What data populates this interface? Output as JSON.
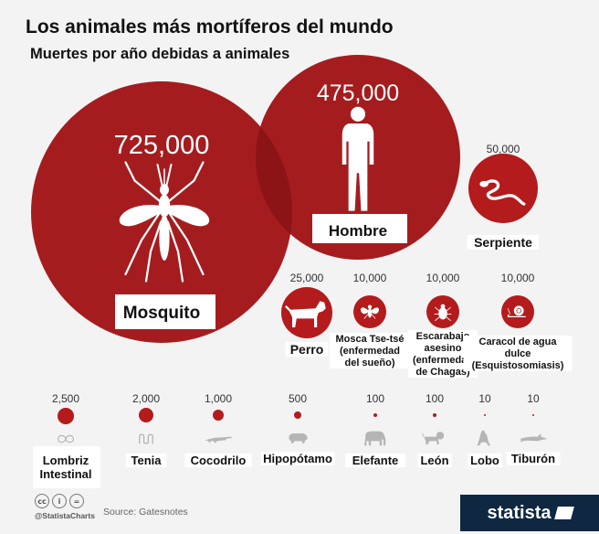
{
  "header": {
    "title": "Los animales más mortíferos del mundo",
    "subtitle": "Muertes por año debidas a animales"
  },
  "footer": {
    "cc_labels": [
      "cc",
      "i",
      "="
    ],
    "handle": "@StatistaCharts",
    "source": "Source: Gatesnotes",
    "brand": "statista"
  },
  "colors": {
    "circle": "#b41b1c",
    "big_circle": "#a51c1f",
    "overlap": "#8c1416",
    "icon_gray": "#b5b5b5",
    "background": "#f3f3f3",
    "brand_bg": "#0f2741"
  },
  "chart_data": {
    "type": "bubble",
    "title": "Los animales más mortíferos del mundo",
    "subtitle": "Muertes por año debidas a animales",
    "series": [
      {
        "name": "Mosquito",
        "value": 725000,
        "value_label": "725,000",
        "label_lines": [
          "Mosquito"
        ],
        "icon": "mosquito-icon"
      },
      {
        "name": "Hombre",
        "value": 475000,
        "value_label": "475,000",
        "label_lines": [
          "Hombre"
        ],
        "icon": "human-icon"
      },
      {
        "name": "Serpiente",
        "value": 50000,
        "value_label": "50,000",
        "label_lines": [
          "Serpiente"
        ],
        "icon": "snake-icon"
      },
      {
        "name": "Perro",
        "value": 25000,
        "value_label": "25,000",
        "label_lines": [
          "Perro"
        ],
        "icon": "dog-icon"
      },
      {
        "name": "Mosca Tse-tsé (enfermedad del sueño)",
        "value": 10000,
        "value_label": "10,000",
        "label_lines": [
          "Mosca Tse-tsé",
          "(enfermedad",
          "del sueño)"
        ],
        "icon": "fly-icon"
      },
      {
        "name": "Escarabajo asesino (enfermedad de Chagas)",
        "value": 10000,
        "value_label": "10,000",
        "label_lines": [
          "Escarabajo",
          "asesino",
          "(enfermedad",
          "de Chagas)"
        ],
        "icon": "beetle-icon"
      },
      {
        "name": "Caracol de agua dulce (Esquistosomiasis)",
        "value": 10000,
        "value_label": "10,000",
        "label_lines": [
          "Caracol de agua",
          "dulce",
          "(Esquistosomiasis)"
        ],
        "icon": "snail-icon"
      },
      {
        "name": "Lombriz Intestinal",
        "value": 2500,
        "value_label": "2,500",
        "label_lines": [
          "Lombriz",
          "Intestinal"
        ],
        "icon": "roundworm-icon"
      },
      {
        "name": "Tenia",
        "value": 2000,
        "value_label": "2,000",
        "label_lines": [
          "Tenia"
        ],
        "icon": "tapeworm-icon"
      },
      {
        "name": "Cocodrilo",
        "value": 1000,
        "value_label": "1,000",
        "label_lines": [
          "Cocodrilo"
        ],
        "icon": "crocodile-icon"
      },
      {
        "name": "Hipopótamo",
        "value": 500,
        "value_label": "500",
        "label_lines": [
          "Hipopótamo"
        ],
        "icon": "hippo-icon"
      },
      {
        "name": "Elefante",
        "value": 100,
        "value_label": "100",
        "label_lines": [
          "Elefante"
        ],
        "icon": "elephant-icon"
      },
      {
        "name": "León",
        "value": 100,
        "value_label": "100",
        "label_lines": [
          "León"
        ],
        "icon": "lion-icon"
      },
      {
        "name": "Lobo",
        "value": 10,
        "value_label": "10",
        "label_lines": [
          "Lobo"
        ],
        "icon": "wolf-icon"
      },
      {
        "name": "Tiburón",
        "value": 10,
        "value_label": "10",
        "label_lines": [
          "Tiburón"
        ],
        "icon": "shark-icon"
      }
    ]
  }
}
